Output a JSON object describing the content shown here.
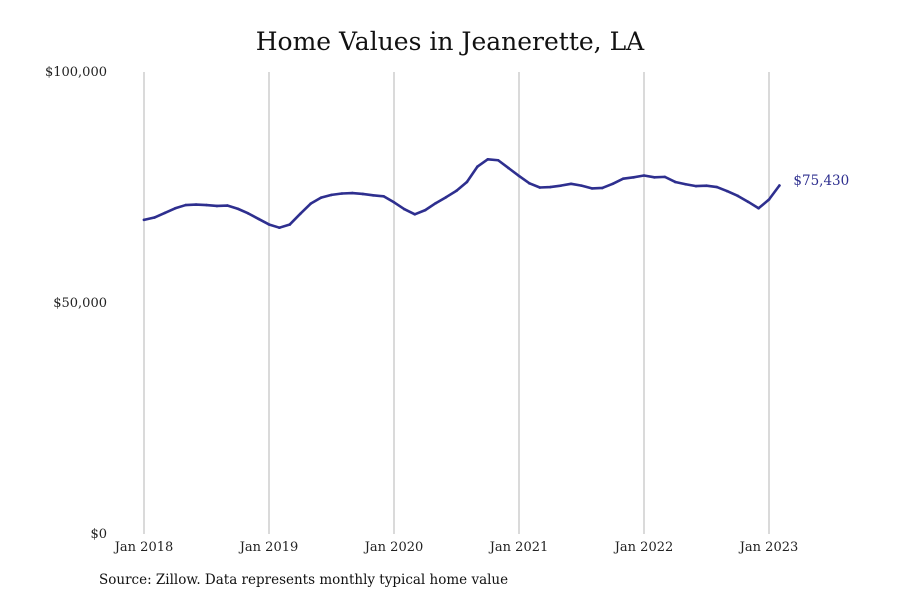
{
  "chart_data": {
    "type": "line",
    "title": "Home Values in Jeanerette, LA",
    "source": "Source: Zillow. Data represents monthly typical home value",
    "xlabel": "",
    "ylabel": "",
    "ylim": [
      0,
      100000
    ],
    "y_ticks": [
      {
        "value": 0,
        "label": "$0"
      },
      {
        "value": 50000,
        "label": "$50,000"
      },
      {
        "value": 100000,
        "label": "$100,000"
      }
    ],
    "x_ticks": [
      {
        "date": "2018-01",
        "label": "Jan 2018"
      },
      {
        "date": "2019-01",
        "label": "Jan 2019"
      },
      {
        "date": "2020-01",
        "label": "Jan 2020"
      },
      {
        "date": "2021-01",
        "label": "Jan 2021"
      },
      {
        "date": "2022-01",
        "label": "Jan 2022"
      },
      {
        "date": "2023-01",
        "label": "Jan 2023"
      }
    ],
    "grid": "vertical",
    "line_color": "#2e2f8f",
    "end_label": "$75,430",
    "series": [
      {
        "x": [
          "2018-01",
          "2018-02",
          "2018-03",
          "2018-04",
          "2018-05",
          "2018-06",
          "2018-07",
          "2018-08",
          "2018-09",
          "2018-10",
          "2018-11",
          "2018-12",
          "2019-01",
          "2019-02",
          "2019-03",
          "2019-04",
          "2019-05",
          "2019-06",
          "2019-07",
          "2019-08",
          "2019-09",
          "2019-10",
          "2019-11",
          "2019-12",
          "2020-01",
          "2020-02",
          "2020-03",
          "2020-04",
          "2020-05",
          "2020-06",
          "2020-07",
          "2020-08",
          "2020-09",
          "2020-10",
          "2020-11",
          "2020-12",
          "2021-01",
          "2021-02",
          "2021-03",
          "2021-04",
          "2021-05",
          "2021-06",
          "2021-07",
          "2021-08",
          "2021-09",
          "2021-10",
          "2021-11",
          "2021-12",
          "2022-01",
          "2022-02",
          "2022-03",
          "2022-04",
          "2022-05",
          "2022-06",
          "2022-07",
          "2022-08",
          "2022-09",
          "2022-10",
          "2022-11",
          "2022-12",
          "2023-01",
          "2023-02"
        ],
        "values": [
          68000,
          68500,
          69500,
          70500,
          71200,
          71300,
          71200,
          71000,
          71100,
          70400,
          69400,
          68200,
          67000,
          66300,
          67000,
          69300,
          71500,
          72800,
          73400,
          73700,
          73800,
          73600,
          73300,
          73100,
          71800,
          70300,
          69200,
          70100,
          71600,
          72900,
          74300,
          76200,
          79500,
          81100,
          80900,
          79200,
          77500,
          75900,
          75000,
          75100,
          75400,
          75800,
          75400,
          74800,
          74900,
          75800,
          76900,
          77200,
          77600,
          77200,
          77300,
          76200,
          75700,
          75300,
          75400,
          75100,
          74200,
          73200,
          71900,
          70500,
          72400,
          75430
        ]
      }
    ]
  }
}
